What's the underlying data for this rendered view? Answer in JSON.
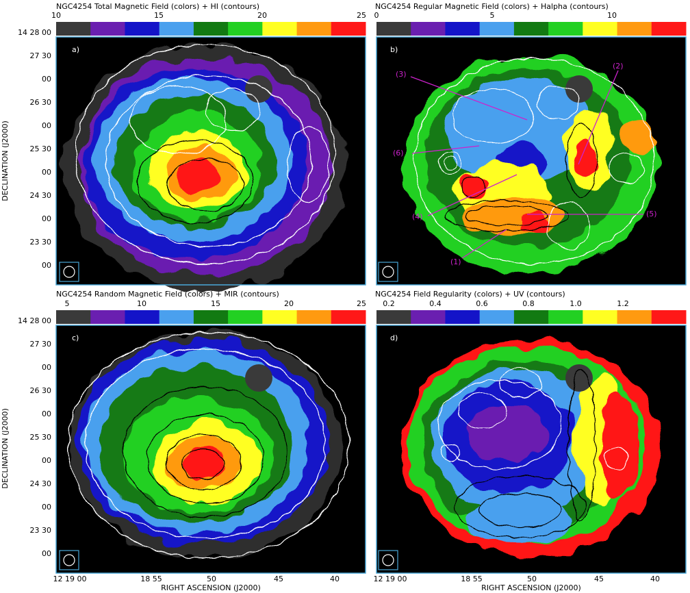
{
  "figure": {
    "yaxis_label": "DECLINATION (J2000)",
    "xaxis_label": "RIGHT ASCENSION (J2000)"
  },
  "colormap": [
    "#3a3a3a",
    "#6a1fb0",
    "#1414c8",
    "#4aa0ee",
    "#127a12",
    "#22d022",
    "#ffff22",
    "#ff9a10",
    "#ff1818"
  ],
  "chart_data": [
    {
      "type": "heatmap",
      "title": "NGC4254  Total Magnetic Field (colors) + HI (contours)",
      "panel_label": "a)",
      "colorbar_ticks": [
        "10",
        "15",
        "20",
        "25"
      ],
      "colorbar_range": [
        10,
        25
      ],
      "ytick_labels": [
        "14 28 00",
        "27 30",
        "00",
        "26 30",
        "00",
        "25 30",
        "00",
        "24 30",
        "00",
        "23 30",
        "00"
      ],
      "xtick_labels": [],
      "annotations": []
    },
    {
      "type": "heatmap",
      "title": "NGC4254  Regular Magnetic Field (colors) + Halpha (contours)",
      "panel_label": "b)",
      "colorbar_ticks": [
        "0",
        "5",
        "10"
      ],
      "colorbar_range": [
        0,
        13
      ],
      "ytick_labels": [],
      "xtick_labels": [],
      "annotations": [
        "(1)",
        "(2)",
        "(3)",
        "(4)",
        "(5)",
        "(6)"
      ]
    },
    {
      "type": "heatmap",
      "title": "NGC4254  Random Magnetic Field (colors) + MIR (contours)",
      "panel_label": "c)",
      "colorbar_ticks": [
        "5",
        "10",
        "15",
        "20",
        "25"
      ],
      "colorbar_range": [
        3,
        25
      ],
      "ytick_labels": [
        "14 28 00",
        "27 30",
        "00",
        "26 30",
        "00",
        "25 30",
        "00",
        "24 30",
        "00",
        "23 30",
        "00"
      ],
      "xtick_labels": [
        "12 19 00",
        "18 55",
        "50",
        "45",
        "40"
      ],
      "annotations": []
    },
    {
      "type": "heatmap",
      "title": "NGC4254  Field Regularity (colors) + UV (contours)",
      "panel_label": "d)",
      "colorbar_ticks": [
        "0.2",
        "0.4",
        "0.6",
        "0.8",
        "1.0",
        "1.2"
      ],
      "colorbar_range": [
        0.1,
        1.4
      ],
      "ytick_labels": [],
      "xtick_labels": [
        "12 19 00",
        "18 55",
        "50",
        "45",
        "40"
      ],
      "annotations": []
    }
  ]
}
